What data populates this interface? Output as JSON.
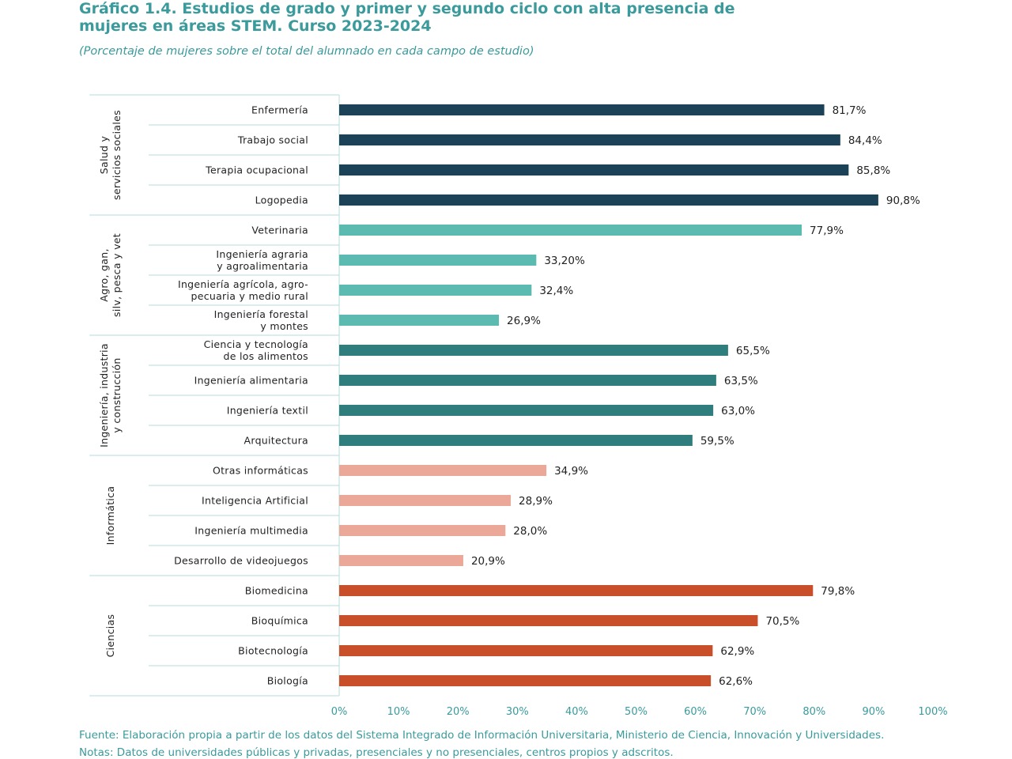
{
  "header": {
    "title": "Gráfico 1.4. Estudios de grado y primer y segundo ciclo con alta presencia de mujeres en áreas STEM. Curso 2023-2024",
    "subtitle": "(Porcentaje de mujeres sobre el total del alumnado en cada campo de estudio)"
  },
  "footer": {
    "source": "Fuente: Elaboración propia a partir de los datos del Sistema Integrado de Información Universitaria, Ministerio de Ciencia, Innovación y Universidades.",
    "notes": "Notas: Datos de universidades públicas y privadas, presenciales y no presenciales, centros propios y adscritos."
  },
  "chart_data": {
    "type": "bar",
    "orientation": "horizontal",
    "xlim": [
      0,
      100
    ],
    "x_ticks": [
      "0%",
      "10%",
      "20%",
      "30%",
      "40%",
      "50%",
      "60%",
      "70%",
      "80%",
      "90%",
      "100%"
    ],
    "grid": false,
    "groups": [
      {
        "name": [
          "Salud y",
          "servicios sociales"
        ],
        "color": "#1b4257",
        "items": [
          {
            "label": [
              "Enfermería"
            ],
            "value": 81.7,
            "value_label": "81,7%"
          },
          {
            "label": [
              "Trabajo social"
            ],
            "value": 84.4,
            "value_label": "84,4%"
          },
          {
            "label": [
              "Terapia ocupacional"
            ],
            "value": 85.8,
            "value_label": "85,8%"
          },
          {
            "label": [
              "Logopedia"
            ],
            "value": 90.8,
            "value_label": "90,8%"
          }
        ]
      },
      {
        "name": [
          "Agro, gan,",
          "silv, pesca y vet"
        ],
        "color": "#5cbbb1",
        "items": [
          {
            "label": [
              "Veterinaria"
            ],
            "value": 77.9,
            "value_label": "77,9%"
          },
          {
            "label": [
              "Ingeniería agraria",
              "y agroalimentaria"
            ],
            "value": 33.2,
            "value_label": "33,20%"
          },
          {
            "label": [
              "Ingeniería agrícola, agro-",
              "pecuaria y medio rural"
            ],
            "value": 32.4,
            "value_label": "32,4%"
          },
          {
            "label": [
              "Ingeniería forestal",
              "y montes"
            ],
            "value": 26.9,
            "value_label": "26,9%"
          }
        ]
      },
      {
        "name": [
          "Ingeniería, industria",
          "y construcción"
        ],
        "color": "#2f7d7c",
        "items": [
          {
            "label": [
              "Ciencia y tecnología",
              "de los alimentos"
            ],
            "value": 65.5,
            "value_label": "65,5%"
          },
          {
            "label": [
              "Ingeniería alimentaria"
            ],
            "value": 63.5,
            "value_label": "63,5%"
          },
          {
            "label": [
              "Ingeniería textil"
            ],
            "value": 63.0,
            "value_label": "63,0%"
          },
          {
            "label": [
              "Arquitectura"
            ],
            "value": 59.5,
            "value_label": "59,5%"
          }
        ]
      },
      {
        "name": [
          "Informática"
        ],
        "color": "#eba898",
        "items": [
          {
            "label": [
              "Otras informáticas"
            ],
            "value": 34.9,
            "value_label": "34,9%"
          },
          {
            "label": [
              "Inteligencia Artificial"
            ],
            "value": 28.9,
            "value_label": "28,9%"
          },
          {
            "label": [
              "Ingeniería multimedia"
            ],
            "value": 28.0,
            "value_label": "28,0%"
          },
          {
            "label": [
              "Desarrollo de videojuegos"
            ],
            "value": 20.9,
            "value_label": "20,9%"
          }
        ]
      },
      {
        "name": [
          "Ciencias"
        ],
        "color": "#c94f2a",
        "items": [
          {
            "label": [
              "Biomedicina"
            ],
            "value": 79.8,
            "value_label": "79,8%"
          },
          {
            "label": [
              "Bioquímica"
            ],
            "value": 70.5,
            "value_label": "70,5%"
          },
          {
            "label": [
              "Biotecnología"
            ],
            "value": 62.9,
            "value_label": "62,9%"
          },
          {
            "label": [
              "Biología"
            ],
            "value": 62.6,
            "value_label": "62,6%"
          }
        ]
      }
    ]
  }
}
